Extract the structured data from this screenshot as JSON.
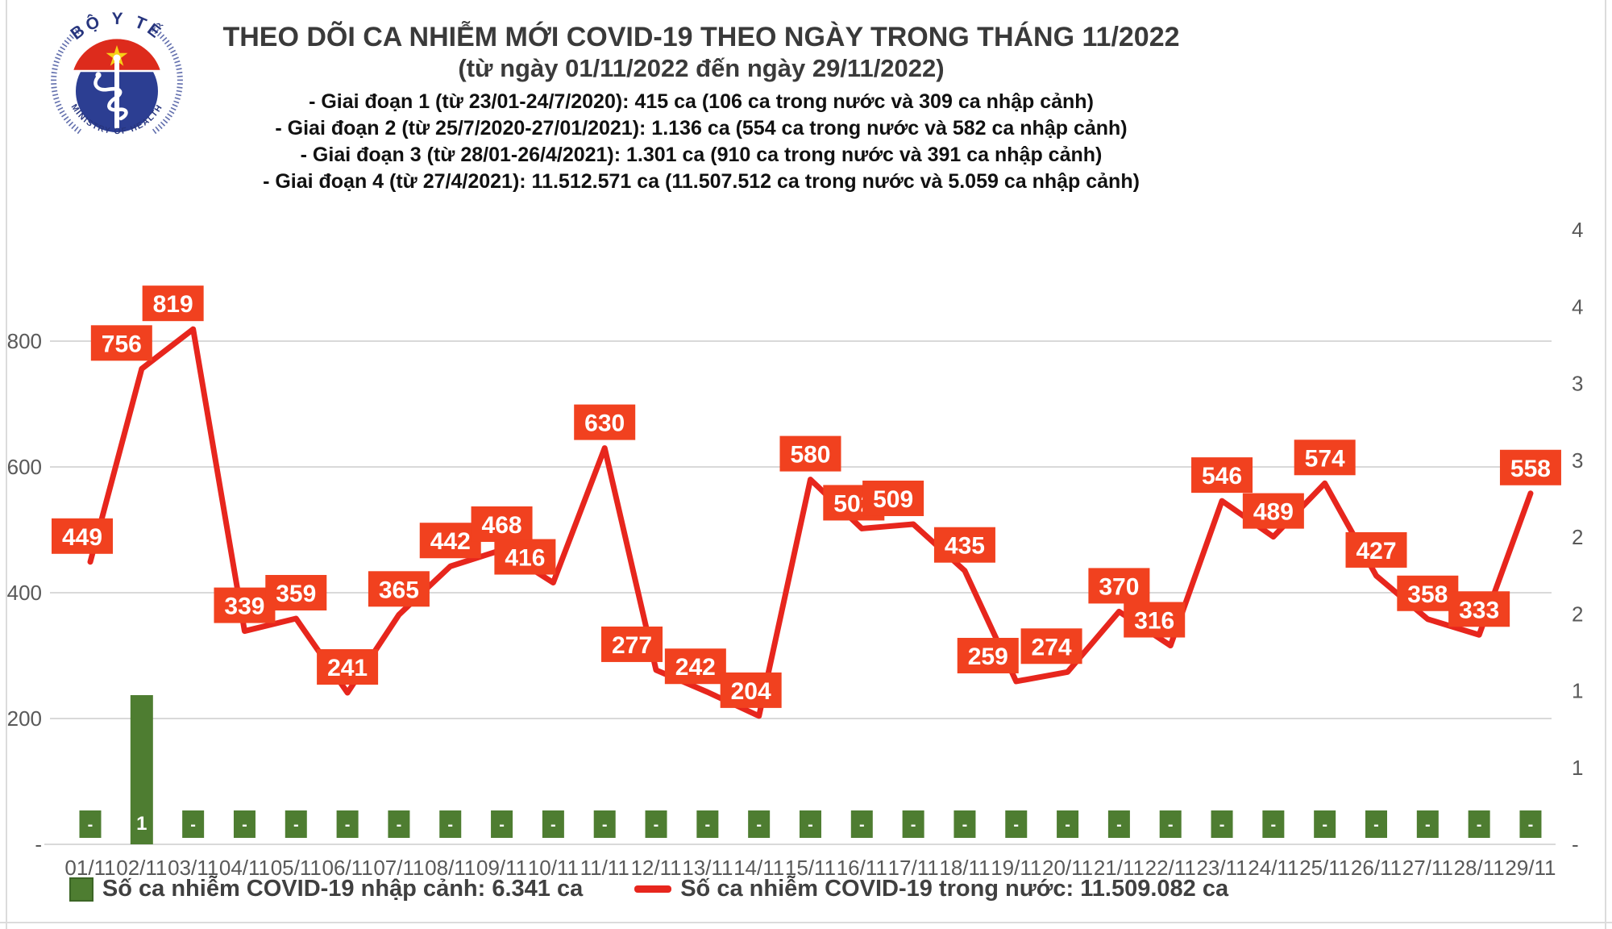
{
  "header": {
    "title": "THEO DÕI CA NHIỄM MỚI COVID-19 THEO NGÀY TRONG THÁNG 11/2022",
    "subtitle": "(từ ngày 01/11/2022 đến ngày 29/11/2022)",
    "phases": [
      "- Giai đoạn 1 (từ 23/01-24/7/2020): 415 ca (106 ca trong nước và 309 ca nhập cảnh)",
      "- Giai đoạn 2 (từ 25/7/2020-27/01/2021): 1.136 ca (554 ca trong nước và 582 ca nhập cảnh)",
      "- Giai đoạn 3 (từ 28/01-26/4/2021): 1.301 ca (910 ca trong nước và 391 ca nhập cảnh)",
      "- Giai đoạn 4 (từ 27/4/2021): 11.512.571 ca (11.507.512 ca trong nước và 5.059 ca nhập cảnh)"
    ]
  },
  "logo": {
    "top_text": "BỘ Y TẾ",
    "bottom_text": "MINISTRY OF HEALTH"
  },
  "chart_data": {
    "type": "line+bar",
    "title": "THEO DÕI CA NHIỄM MỚI COVID-19 THEO NGÀY TRONG THÁNG 11/2022",
    "categories": [
      "01/11",
      "02/11",
      "03/11",
      "04/11",
      "05/11",
      "06/11",
      "07/11",
      "08/11",
      "09/11",
      "10/11",
      "11/11",
      "12/11",
      "13/11",
      "14/11",
      "15/11",
      "16/11",
      "17/11",
      "18/11",
      "19/11",
      "20/11",
      "21/11",
      "22/11",
      "23/11",
      "24/11",
      "25/11",
      "26/11",
      "27/11",
      "28/11",
      "29/11"
    ],
    "series": [
      {
        "name": "Số ca nhiễm COVID-19 nhập cảnh",
        "type": "bar",
        "color": "#4e7d31",
        "values": [
          0,
          1,
          0,
          0,
          0,
          0,
          0,
          0,
          0,
          0,
          0,
          0,
          0,
          0,
          0,
          0,
          0,
          0,
          0,
          0,
          0,
          0,
          0,
          0,
          0,
          0,
          0,
          0,
          0
        ],
        "labels": [
          "-",
          "1",
          "-",
          "-",
          "-",
          "-",
          "-",
          "-",
          "-",
          "-",
          "-",
          "-",
          "-",
          "-",
          "-",
          "-",
          "-",
          "-",
          "-",
          "-",
          "-",
          "-",
          "-",
          "-",
          "-",
          "-",
          "-",
          "-",
          "-"
        ]
      },
      {
        "name": "Số ca nhiễm COVID-19 trong nước",
        "type": "line",
        "color": "#e7261d",
        "values": [
          449,
          756,
          819,
          339,
          359,
          241,
          365,
          442,
          468,
          416,
          630,
          277,
          242,
          204,
          580,
          502,
          509,
          435,
          259,
          274,
          370,
          316,
          546,
          489,
          574,
          427,
          358,
          333,
          558
        ]
      }
    ],
    "left_axis": {
      "labels": [
        "800",
        "600",
        "400",
        "200",
        "-"
      ],
      "values": [
        800,
        600,
        400,
        200,
        0
      ],
      "range": [
        0,
        1000
      ],
      "grid": true
    },
    "right_axis": {
      "ticks_top_to_bottom": [
        "4",
        "4",
        "3",
        "3",
        "2",
        "2",
        "1",
        "1",
        "-"
      ]
    },
    "colors": {
      "grid": "#d9d9d9",
      "axis_text": "#595959",
      "label_box": "#f1411f",
      "label_text": "#ffffff"
    }
  },
  "legend": {
    "bar_label": "Số ca nhiễm COVID-19 nhập cảnh: 6.341 ca",
    "line_label": "Số ca nhiễm COVID-19 trong nước: 11.509.082 ca"
  }
}
